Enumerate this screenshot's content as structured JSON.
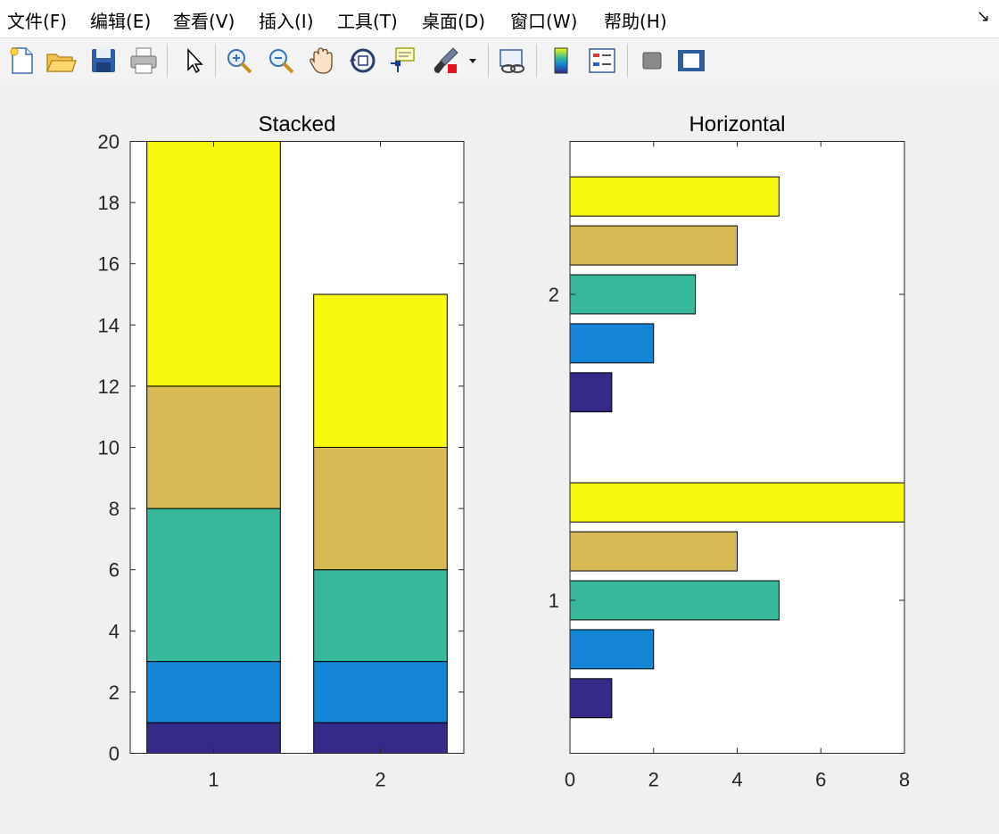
{
  "menu": [
    "文件(F)",
    "编辑(E)",
    "查看(V)",
    "插入(I)",
    "工具(T)",
    "桌面(D)",
    "窗口(W)",
    "帮助(H)"
  ],
  "dock_glyph": "↘",
  "toolbar": [
    {
      "icon": "new-figure-icon"
    },
    {
      "icon": "open-file-icon"
    },
    {
      "icon": "save-icon"
    },
    {
      "icon": "print-icon"
    },
    {
      "icon": "edit-plot-pointer-icon"
    },
    {
      "icon": "zoom-in-icon"
    },
    {
      "icon": "zoom-out-icon"
    },
    {
      "icon": "pan-hand-icon"
    },
    {
      "icon": "rotate-3d-icon"
    },
    {
      "icon": "data-cursor-icon"
    },
    {
      "icon": "brush-icon"
    },
    {
      "icon": "brush-dropdown-icon"
    },
    {
      "icon": "link-plot-icon"
    },
    {
      "icon": "colorbar-icon"
    },
    {
      "icon": "legend-icon"
    },
    {
      "icon": "hide-plot-tools-icon"
    },
    {
      "icon": "show-plot-tools-icon"
    }
  ],
  "colors": {
    "series": [
      "#352a87",
      "#1585d6",
      "#38b89b",
      "#d8ba55",
      "#f6f90c"
    ],
    "axes_bg": "#ffffff",
    "figure_bg": "#f0f0f0"
  },
  "chart_data": [
    {
      "type": "bar",
      "stacked": true,
      "orientation": "vertical",
      "title": "Stacked",
      "categories": [
        "1",
        "2"
      ],
      "series": [
        {
          "values": [
            1,
            1
          ]
        },
        {
          "values": [
            2,
            2
          ]
        },
        {
          "values": [
            5,
            3
          ]
        },
        {
          "values": [
            4,
            4
          ]
        },
        {
          "values": [
            8,
            5
          ]
        }
      ],
      "xlabel": "",
      "ylabel": "",
      "ylim": [
        0,
        20
      ],
      "yticks": [
        "0",
        "2",
        "4",
        "6",
        "8",
        "10",
        "12",
        "14",
        "16",
        "18",
        "20"
      ],
      "grid": false,
      "legend": "none"
    },
    {
      "type": "bar",
      "stacked": false,
      "orientation": "horizontal",
      "title": "Horizontal",
      "categories": [
        "1",
        "2"
      ],
      "series": [
        {
          "values": [
            1,
            1
          ]
        },
        {
          "values": [
            2,
            2
          ]
        },
        {
          "values": [
            5,
            3
          ]
        },
        {
          "values": [
            4,
            4
          ]
        },
        {
          "values": [
            8,
            5
          ]
        }
      ],
      "xlabel": "",
      "ylabel": "",
      "xlim": [
        0,
        8
      ],
      "xticks": [
        "0",
        "2",
        "4",
        "6",
        "8"
      ],
      "grid": false,
      "legend": "none"
    }
  ]
}
